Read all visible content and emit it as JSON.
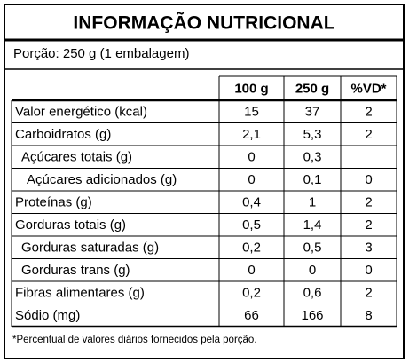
{
  "header": {
    "title": "INFORMAÇÃO NUTRICIONAL",
    "portion": "Porção: 250 g (1 embalagem)"
  },
  "table": {
    "columns": [
      "100 g",
      "250 g",
      "%VD*"
    ],
    "rows": [
      [
        "Valor energético (kcal)",
        "15",
        "37",
        "2"
      ],
      [
        "Carboidratos (g)",
        "2,1",
        "5,3",
        "2"
      ],
      [
        "Açúcares totais (g)",
        "0",
        "0,3",
        null
      ],
      [
        "Açúcares adicionados (g)",
        "0",
        "0,1",
        "0"
      ],
      [
        "Proteínas (g)",
        "0,4",
        "1",
        "2"
      ],
      [
        "Gorduras totais (g)",
        "0,5",
        "1,4",
        "2"
      ],
      [
        "Gorduras saturadas (g)",
        "0,2",
        "0,5",
        "3"
      ],
      [
        "Gorduras trans (g)",
        "0",
        "0",
        "0"
      ],
      [
        "Fibras alimentares (g)",
        "0,2",
        "0,6",
        "2"
      ],
      [
        "Sódio (mg)",
        "66",
        "166",
        "8"
      ]
    ]
  },
  "footnote": "*Percentual de valores diários fornecidos pela porção."
}
